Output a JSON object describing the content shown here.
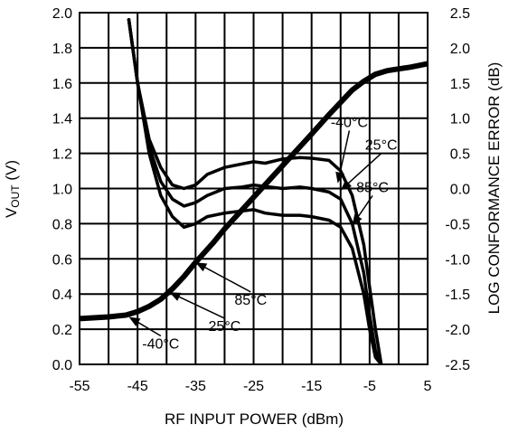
{
  "chart_data": {
    "type": "line",
    "xlabel": "RF INPUT POWER (dBm)",
    "ylabel_left": {
      "main": "V",
      "sub": "OUT",
      "unit": " (V)"
    },
    "ylabel_right": "LOG CONFORMANCE ERROR (dB)",
    "xlim": [
      -55,
      5
    ],
    "ylim_left": [
      0.0,
      2.0
    ],
    "ylim_right": [
      -2.5,
      2.5
    ],
    "grid": true,
    "x_ticks": [
      "-55",
      "-45",
      "-35",
      "-25",
      "-15",
      "-5",
      "5"
    ],
    "x_tick_values": [
      -55,
      -45,
      -35,
      -25,
      -15,
      -5,
      5
    ],
    "y_left_ticks": [
      "0.0",
      "0.2",
      "0.4",
      "0.6",
      "0.8",
      "1.0",
      "1.2",
      "1.4",
      "1.6",
      "1.8",
      "2.0"
    ],
    "y_left_tick_values": [
      0.0,
      0.2,
      0.4,
      0.6,
      0.8,
      1.0,
      1.2,
      1.4,
      1.6,
      1.8,
      2.0
    ],
    "y_right_ticks": [
      "-2.5",
      "-2.0",
      "-1.5",
      "-1.0",
      "-0.5",
      "0.0",
      "0.5",
      "1.0",
      "1.5",
      "2.0",
      "2.5"
    ],
    "y_right_tick_values": [
      -2.5,
      -2.0,
      -1.5,
      -1.0,
      -0.5,
      0.0,
      0.5,
      1.0,
      1.5,
      2.0,
      2.5
    ],
    "series": [
      {
        "axis": "left",
        "x": [
          -55,
          -50,
          -47,
          -45,
          -43,
          -41,
          -39,
          -37,
          -35,
          -32,
          -30,
          -25,
          -20,
          -15,
          -12,
          -10,
          -8,
          -6,
          -4,
          -2,
          0,
          2,
          5
        ],
        "values": [
          0.26,
          0.27,
          0.28,
          0.3,
          0.33,
          0.37,
          0.43,
          0.5,
          0.58,
          0.69,
          0.77,
          0.95,
          1.13,
          1.31,
          1.42,
          1.49,
          1.56,
          1.61,
          1.65,
          1.67,
          1.68,
          1.69,
          1.71
        ]
      },
      {
        "axis": "right",
        "x": [
          -46.5,
          -45,
          -43,
          -41,
          -39,
          -37,
          -35,
          -33,
          -30,
          -27,
          -25,
          -23,
          -20,
          -17,
          -15,
          -12,
          -10,
          -8,
          -6,
          -5,
          -4,
          -3
        ],
        "values": [
          2.4,
          1.5,
          0.7,
          0.3,
          0.05,
          0.0,
          0.05,
          0.2,
          0.3,
          0.35,
          0.38,
          0.36,
          0.42,
          0.44,
          0.43,
          0.4,
          0.25,
          -0.1,
          -0.8,
          -1.4,
          -2.0,
          -2.5
        ]
      },
      {
        "axis": "right",
        "x": [
          -46.5,
          -45,
          -43,
          -41,
          -39,
          -37,
          -35,
          -33,
          -30,
          -27,
          -25,
          -23,
          -20,
          -17,
          -15,
          -12,
          -10,
          -8,
          -6,
          -5,
          -4,
          -3
        ],
        "values": [
          2.4,
          1.5,
          0.6,
          0.1,
          -0.15,
          -0.25,
          -0.2,
          -0.1,
          0.0,
          0.02,
          0.05,
          0.03,
          0.0,
          0.02,
          0.0,
          -0.05,
          -0.15,
          -0.5,
          -1.2,
          -1.8,
          -2.3,
          -2.5
        ]
      },
      {
        "axis": "right",
        "x": [
          -46.5,
          -45,
          -43,
          -41,
          -39,
          -37,
          -35,
          -33,
          -30,
          -27,
          -25,
          -23,
          -20,
          -17,
          -15,
          -12,
          -10,
          -8,
          -6,
          -5,
          -4,
          -3
        ],
        "values": [
          2.4,
          1.5,
          0.5,
          -0.1,
          -0.4,
          -0.55,
          -0.5,
          -0.4,
          -0.35,
          -0.32,
          -0.3,
          -0.35,
          -0.38,
          -0.38,
          -0.4,
          -0.45,
          -0.55,
          -0.85,
          -1.5,
          -2.0,
          -2.4,
          -2.5
        ]
      }
    ],
    "annotations": [
      {
        "text": "-40°C",
        "at": [
          -10.5,
          1.03
        ],
        "label_at": [
          -8.5,
          1.35
        ]
      },
      {
        "text": "25°C",
        "at": [
          -10.0,
          0.99
        ],
        "label_at": [
          -3.0,
          1.22
        ]
      },
      {
        "text": "85°C",
        "at": [
          -8.0,
          0.79
        ],
        "label_at": [
          -4.5,
          0.98
        ]
      },
      {
        "text": "85°C",
        "at": [
          -35.0,
          0.58
        ],
        "label_at": [
          -25.5,
          0.34
        ]
      },
      {
        "text": "25°C",
        "at": [
          -39.5,
          0.41
        ],
        "label_at": [
          -30.0,
          0.19
        ]
      },
      {
        "text": "-40°C",
        "at": [
          -46.5,
          0.27
        ],
        "label_at": [
          -41.0,
          0.09
        ]
      }
    ]
  }
}
